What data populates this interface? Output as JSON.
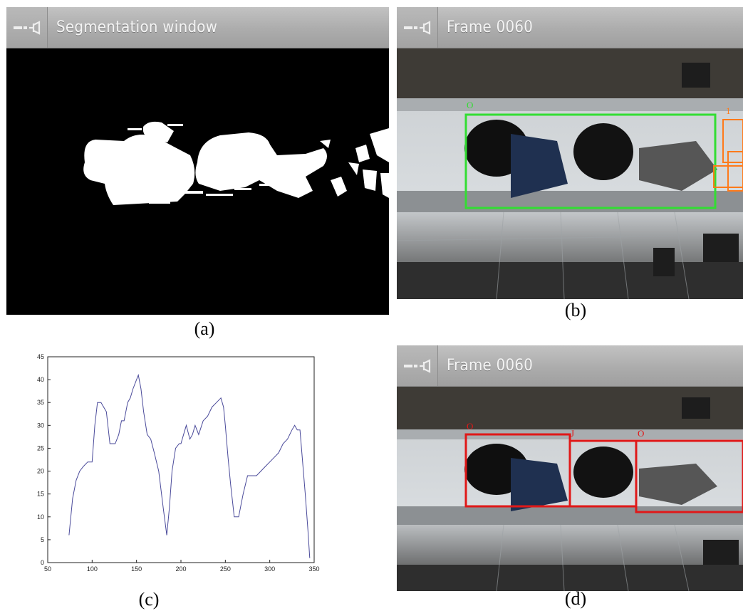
{
  "panels": {
    "a": {
      "window_title": "Segmentation window",
      "caption": "(a)",
      "icons": [
        "minimize-icon",
        "pin-icon"
      ]
    },
    "b": {
      "window_title": "Frame 0060",
      "caption": "(b)",
      "box_colors": {
        "merged": "#33dd33",
        "edge": "#ff7a1a"
      }
    },
    "c": {
      "caption": "(c)"
    },
    "d": {
      "window_title": "Frame 0060",
      "caption": "(d)",
      "box_colors": {
        "split": "#e01818"
      }
    }
  },
  "chart_data": {
    "type": "line",
    "title": "",
    "xlabel": "",
    "ylabel": "",
    "xlim": [
      50,
      350
    ],
    "ylim": [
      0,
      45
    ],
    "xticks": [
      50,
      100,
      150,
      200,
      250,
      300,
      350
    ],
    "yticks": [
      0,
      5,
      10,
      15,
      20,
      25,
      30,
      35,
      40,
      45
    ],
    "grid": false,
    "series": [
      {
        "color": "#4a4a9a",
        "x": [
          74,
          78,
          82,
          86,
          90,
          95,
          100,
          103,
          106,
          110,
          113,
          116,
          120,
          123,
          126,
          130,
          133,
          136,
          140,
          143,
          146,
          150,
          152,
          155,
          158,
          162,
          166,
          170,
          175,
          180,
          184,
          187,
          190,
          194,
          198,
          200,
          203,
          206,
          210,
          213,
          216,
          220,
          225,
          230,
          235,
          240,
          245,
          248,
          250,
          253,
          256,
          260,
          265,
          270,
          275,
          280,
          285,
          290,
          295,
          300,
          305,
          310,
          315,
          320,
          325,
          328,
          331,
          334,
          337,
          340,
          343,
          345
        ],
        "y": [
          6,
          14,
          18,
          20,
          21,
          22,
          22,
          30,
          35,
          35,
          34,
          33,
          26,
          26,
          26,
          28,
          31,
          31,
          35,
          36,
          38,
          40,
          41,
          38,
          33,
          28,
          27,
          24,
          20,
          12,
          6,
          12,
          20,
          25,
          26,
          26,
          28,
          30,
          27,
          28,
          30,
          28,
          31,
          32,
          34,
          35,
          36,
          34,
          30,
          23,
          17,
          10,
          10,
          15,
          19,
          19,
          19,
          20,
          21,
          22,
          23,
          24,
          26,
          27,
          29,
          30,
          29,
          29,
          22,
          15,
          7,
          1
        ]
      }
    ]
  }
}
